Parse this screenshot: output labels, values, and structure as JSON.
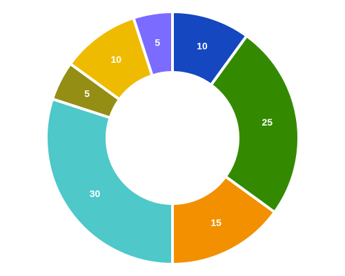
{
  "chart_data": {
    "type": "donut",
    "values": [
      10,
      25,
      15,
      30,
      5,
      10,
      5
    ],
    "colors": [
      "#1447c0",
      "#338a00",
      "#f39000",
      "#4ec8c8",
      "#948e14",
      "#efbb00",
      "#7b6cff"
    ]
  }
}
